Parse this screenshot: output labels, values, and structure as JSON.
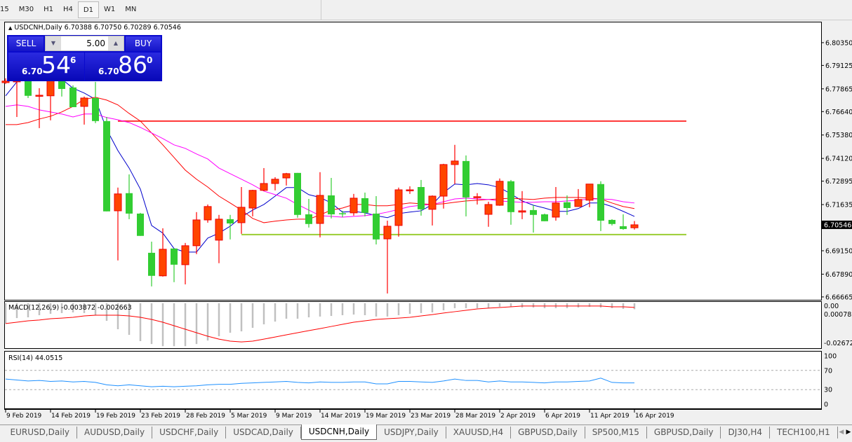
{
  "toolbar": {
    "timeframes": [
      "15",
      "M30",
      "H1",
      "H4",
      "D1",
      "W1",
      "MN"
    ],
    "active": "D1"
  },
  "chart": {
    "header": "USDCNH,Daily  6.70388 6.70750 6.70289 6.70546",
    "colors": {
      "bull": "#ff4500",
      "bear": "#32cd32",
      "ma_fast": "#0000cc",
      "ma_mid": "#ff0000",
      "ma_slow": "#ff00ff",
      "resistance": "#ff3333",
      "support": "#9acd32",
      "macd_hist": "#c0c0c0",
      "macd_signal": "#ff0000",
      "rsi": "#1e90ff"
    },
    "price_ticks": [
      "6.80350",
      "6.79125",
      "6.77865",
      "6.76640",
      "6.75380",
      "6.74120",
      "6.72895",
      "6.71635",
      "6.69150",
      "6.67890",
      "6.66665"
    ],
    "current_price": "6.70546",
    "ylim": [
      6.6651,
      6.8144
    ],
    "date_ticks": [
      {
        "bar": 0,
        "label": "9 Feb 2019"
      },
      {
        "bar": 4,
        "label": "14 Feb 2019"
      },
      {
        "bar": 8,
        "label": "19 Feb 2019"
      },
      {
        "bar": 12,
        "label": "23 Feb 2019"
      },
      {
        "bar": 16,
        "label": "28 Feb 2019"
      },
      {
        "bar": 20,
        "label": "5 Mar 2019"
      },
      {
        "bar": 24,
        "label": "9 Mar 2019"
      },
      {
        "bar": 28,
        "label": "14 Mar 2019"
      },
      {
        "bar": 32,
        "label": "19 Mar 2019"
      },
      {
        "bar": 36,
        "label": "23 Mar 2019"
      },
      {
        "bar": 40,
        "label": "28 Mar 2019"
      },
      {
        "bar": 44,
        "label": "2 Apr 2019"
      },
      {
        "bar": 48,
        "label": "6 Apr 2019"
      },
      {
        "bar": 52,
        "label": "11 Apr 2019"
      },
      {
        "bar": 56,
        "label": "16 Apr 2019"
      }
    ],
    "hlines": [
      {
        "price": 6.7613,
        "from_bar": 10,
        "to_bar": 60,
        "kind": "resistance"
      },
      {
        "price": 6.7002,
        "from_bar": 21,
        "to_bar": 60,
        "kind": "support"
      }
    ]
  },
  "trade_panel": {
    "sell_label": "SELL",
    "buy_label": "BUY",
    "lots": "5.00",
    "sell_small": "6.70",
    "sell_big": "54",
    "sell_pip": "6",
    "buy_small": "6.70",
    "buy_big": "86",
    "buy_pip": "0"
  },
  "macd": {
    "label": "MACD(12,26,9) -0.003872 -0.002663",
    "tick_top": "0.000782",
    "tick_top_overlap": "0.00",
    "tick_bottom": "-0.026721",
    "ylim": [
      -0.0294,
      0.0009
    ]
  },
  "rsi": {
    "label": "RSI(14) 44.0515",
    "ticks": [
      "100",
      "70",
      "30",
      "0"
    ],
    "levels": [
      30,
      70
    ],
    "ylim": [
      -9,
      109
    ]
  },
  "chart_data": {
    "type": "candlestick",
    "ohlc": [
      [
        6.782,
        6.7843,
        6.7813,
        6.7828
      ],
      [
        6.7824,
        6.7888,
        6.7635,
        6.785
      ],
      [
        6.7828,
        6.785,
        6.7737,
        6.7749
      ],
      [
        6.7749,
        6.779,
        6.7575,
        6.7752
      ],
      [
        6.7749,
        6.7869,
        6.7617,
        6.7843
      ],
      [
        6.7843,
        6.7858,
        6.7745,
        6.7786
      ],
      [
        6.7794,
        6.7805,
        6.7688,
        6.7688
      ],
      [
        6.7692,
        6.7745,
        6.7594,
        6.7737
      ],
      [
        6.7737,
        6.7824,
        6.7602,
        6.7613
      ],
      [
        6.7613,
        6.7635,
        6.7127,
        6.7127
      ],
      [
        6.713,
        6.7255,
        6.6863,
        6.7221
      ],
      [
        6.7225,
        6.7326,
        6.7085,
        6.7115
      ],
      [
        6.7115,
        6.7119,
        6.6995,
        6.6995
      ],
      [
        6.6904,
        6.6964,
        6.6723,
        6.678
      ],
      [
        6.678,
        6.7036,
        6.6776,
        6.6923
      ],
      [
        6.6927,
        6.6927,
        6.6746,
        6.684
      ],
      [
        6.684,
        6.6957,
        6.6734,
        6.6942
      ],
      [
        6.6942,
        6.7123,
        6.6897,
        6.7081
      ],
      [
        6.7081,
        6.7164,
        6.7066,
        6.7153
      ],
      [
        6.6972,
        6.7108,
        6.6848,
        6.7085
      ],
      [
        6.7085,
        6.7108,
        6.6976,
        6.7062
      ],
      [
        6.7066,
        6.7258,
        6.7006,
        6.7149
      ],
      [
        6.7145,
        6.7243,
        6.71,
        6.724
      ],
      [
        6.724,
        6.736,
        6.7236,
        6.7277
      ],
      [
        6.7277,
        6.7311,
        6.724,
        6.73
      ],
      [
        6.7307,
        6.7334,
        6.7266,
        6.733
      ],
      [
        6.7334,
        6.7334,
        6.7093,
        6.7108
      ],
      [
        6.7111,
        6.7194,
        6.704,
        6.7059
      ],
      [
        6.7062,
        6.7338,
        6.6987,
        6.7213
      ],
      [
        6.7213,
        6.7307,
        6.7089,
        6.7111
      ],
      [
        6.7117,
        6.713,
        6.7096,
        6.7115
      ],
      [
        6.7119,
        6.7221,
        6.7104,
        6.7198
      ],
      [
        6.7198,
        6.7228,
        6.71,
        6.7119
      ],
      [
        6.7115,
        6.7209,
        6.6949,
        6.6976
      ],
      [
        6.6979,
        6.7077,
        6.6685,
        6.7047
      ],
      [
        6.7051,
        6.7255,
        6.6991,
        6.7243
      ],
      [
        6.724,
        6.7262,
        6.7221,
        6.7243
      ],
      [
        6.7258,
        6.7296,
        6.7104,
        6.7138
      ],
      [
        6.7138,
        6.7213,
        6.7051,
        6.7209
      ],
      [
        6.7209,
        6.7383,
        6.7142,
        6.7379
      ],
      [
        6.7379,
        6.7485,
        6.7274,
        6.7398
      ],
      [
        6.7398,
        6.7428,
        6.71,
        6.7202
      ],
      [
        6.7204,
        6.7225,
        6.7164,
        6.7206
      ],
      [
        6.7111,
        6.7179,
        6.7044,
        6.7164
      ],
      [
        6.716,
        6.7304,
        6.7157,
        6.7289
      ],
      [
        6.7289,
        6.7296,
        6.7055,
        6.7123
      ],
      [
        6.7123,
        6.7236,
        6.7085,
        6.713
      ],
      [
        6.7134,
        6.716,
        6.7013,
        6.7108
      ],
      [
        6.7111,
        6.7115,
        6.7074,
        6.7074
      ],
      [
        6.7096,
        6.7258,
        6.7077,
        6.7172
      ],
      [
        6.7176,
        6.7213,
        6.7108,
        6.7145
      ],
      [
        6.7153,
        6.7247,
        6.7153,
        6.7191
      ],
      [
        6.7187,
        6.7274,
        6.7149,
        6.7274
      ],
      [
        6.7274,
        6.7289,
        6.7021,
        6.7077
      ],
      [
        6.7081,
        6.7085,
        6.7051,
        6.7059
      ],
      [
        6.7047,
        6.7111,
        6.7028,
        6.7032
      ],
      [
        6.70388,
        6.7075,
        6.70289,
        6.70546
      ]
    ],
    "ma_fast": [
      6.7749,
      6.7824,
      6.7843,
      6.785,
      6.7843,
      6.7839,
      6.779,
      6.7764,
      6.773,
      6.7568,
      6.7454,
      6.736,
      6.7247,
      6.7051,
      6.701,
      6.6927,
      6.6908,
      6.6908,
      6.6983,
      6.701,
      6.7047,
      6.7096,
      6.7134,
      6.7164,
      6.7209,
      6.7255,
      6.7255,
      6.7217,
      6.7202,
      6.7172,
      6.7123,
      6.7127,
      6.7119,
      6.7104,
      6.7093,
      6.7115,
      6.7123,
      6.713,
      6.7164,
      6.7228,
      6.7274,
      6.727,
      6.7277,
      6.727,
      6.7255,
      6.7221,
      6.7183,
      6.716,
      6.7145,
      6.7127,
      6.7127,
      6.7142,
      6.7172,
      6.7172,
      6.7153,
      6.7127,
      6.71
    ],
    "ma_mid": [
      6.7594,
      6.7594,
      6.7605,
      6.7624,
      6.7639,
      6.7662,
      6.7692,
      6.773,
      6.7741,
      6.7726,
      6.77,
      6.7654,
      6.7613,
      6.7549,
      6.7485,
      6.7417,
      6.7349,
      6.73,
      6.7258,
      6.7209,
      6.7172,
      6.7134,
      6.7089,
      6.7066,
      6.7074,
      6.7081,
      6.7085,
      6.7085,
      6.7108,
      6.7134,
      6.7145,
      6.7164,
      6.7164,
      6.7157,
      6.7157,
      6.7164,
      6.7172,
      6.7168,
      6.7164,
      6.7168,
      6.7176,
      6.7183,
      6.7187,
      6.7191,
      6.7194,
      6.7198,
      6.7194,
      6.7191,
      6.7198,
      6.7202,
      6.7202,
      6.7202,
      6.7198,
      6.7194,
      6.7172,
      6.7153,
      6.7142
    ],
    "ma_slow": [
      6.7692,
      6.77,
      6.7692,
      6.7673,
      6.7662,
      6.7651,
      6.7635,
      6.7651,
      6.7651,
      6.7632,
      6.762,
      6.7605,
      6.7579,
      6.7549,
      6.7519,
      6.7485,
      6.7466,
      6.7436,
      6.7409,
      6.736,
      6.733,
      6.73,
      6.727,
      6.7236,
      6.7217,
      6.7198,
      6.7164,
      6.7134,
      6.7104,
      6.71,
      6.7096,
      6.71,
      6.7104,
      6.7111,
      6.7123,
      6.7138,
      6.7153,
      6.716,
      6.7164,
      6.7179,
      6.7194,
      6.7198,
      6.7194,
      6.7191,
      6.7183,
      6.7179,
      6.7176,
      6.7176,
      6.7179,
      6.7179,
      6.7183,
      6.7187,
      6.7194,
      6.7194,
      6.7191,
      6.7179,
      6.7172
    ],
    "macd_hist": [
      -0.0133,
      -0.0097,
      -0.0092,
      -0.0078,
      -0.0069,
      -0.0064,
      -0.006,
      -0.0064,
      -0.0078,
      -0.0115,
      -0.017,
      -0.0207,
      -0.0248,
      -0.0267,
      -0.0281,
      -0.0281,
      -0.0281,
      -0.0267,
      -0.0244,
      -0.0216,
      -0.0193,
      -0.0184,
      -0.0161,
      -0.0138,
      -0.012,
      -0.0101,
      -0.0101,
      -0.0092,
      -0.0087,
      -0.0083,
      -0.0078,
      -0.0074,
      -0.0078,
      -0.0087,
      -0.0087,
      -0.0078,
      -0.0069,
      -0.0064,
      -0.006,
      -0.0046,
      -0.0032,
      -0.0032,
      -0.0032,
      -0.0032,
      -0.0023,
      -0.0023,
      -0.0028,
      -0.0028,
      -0.0032,
      -0.0032,
      -0.0032,
      -0.0028,
      -0.0023,
      -0.0028,
      -0.0032,
      -0.0037,
      -0.0039
    ],
    "macd_signal": [
      -0.0133,
      -0.0124,
      -0.0115,
      -0.011,
      -0.0101,
      -0.0097,
      -0.0092,
      -0.0083,
      -0.0078,
      -0.0078,
      -0.0078,
      -0.0083,
      -0.0092,
      -0.0106,
      -0.0124,
      -0.0147,
      -0.017,
      -0.0193,
      -0.0216,
      -0.0235,
      -0.0248,
      -0.0253,
      -0.0248,
      -0.0235,
      -0.0221,
      -0.0207,
      -0.0193,
      -0.0179,
      -0.0166,
      -0.0152,
      -0.0138,
      -0.0124,
      -0.0115,
      -0.0106,
      -0.0101,
      -0.0097,
      -0.0092,
      -0.0083,
      -0.0074,
      -0.0064,
      -0.0055,
      -0.0046,
      -0.0037,
      -0.0032,
      -0.0028,
      -0.0023,
      -0.0018,
      -0.0018,
      -0.0018,
      -0.0018,
      -0.0018,
      -0.0018,
      -0.0018,
      -0.0018,
      -0.0023,
      -0.0023,
      -0.0027
    ],
    "rsi": [
      52,
      50,
      48,
      49,
      47,
      48,
      46,
      47,
      45,
      40,
      38,
      40,
      38,
      36,
      37,
      36,
      37,
      38,
      40,
      41,
      41,
      43,
      44,
      45,
      46,
      47,
      45,
      44,
      46,
      45,
      45,
      46,
      46,
      42,
      42,
      47,
      47,
      46,
      45,
      48,
      52,
      49,
      49,
      46,
      48,
      46,
      46,
      45,
      44,
      46,
      46,
      47,
      48,
      54,
      45,
      44,
      44.05
    ]
  },
  "tabs": {
    "items": [
      "EURUSD,Daily",
      "AUDUSD,Daily",
      "USDCHF,Daily",
      "USDCAD,Daily",
      "USDCNH,Daily",
      "USDJPY,Daily",
      "XAUUSD,H4",
      "GBPUSD,Daily",
      "SP500,M15",
      "GBPUSD,Daily",
      "DJ30,H4",
      "TECH100,H1"
    ],
    "active": "USDCNH,Daily",
    "prev_icon": "arrow-left-icon",
    "next_icon": "arrow-right-icon"
  }
}
